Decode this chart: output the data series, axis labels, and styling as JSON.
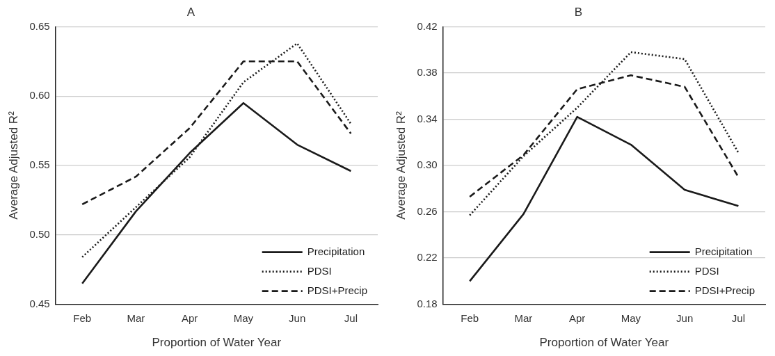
{
  "chart_data": [
    {
      "type": "line",
      "title": "A",
      "xlabel": "Proportion of Water Year",
      "ylabel": "Average Adjusted R²",
      "categories": [
        "Feb",
        "Mar",
        "Apr",
        "May",
        "Jun",
        "Jul"
      ],
      "ylim": [
        0.45,
        0.65
      ],
      "yticks": [
        {
          "value": 0.45,
          "label": "0.45"
        },
        {
          "value": 0.5,
          "label": "0.50"
        },
        {
          "value": 0.55,
          "label": "0.55"
        },
        {
          "value": 0.6,
          "label": "0.60"
        },
        {
          "value": 0.65,
          "label": "0.65"
        }
      ],
      "grid": "y",
      "legend": "bottom right",
      "marker": "none",
      "series": [
        {
          "name": "Precipitation",
          "color": "#1a1a1a",
          "line_style": "solid",
          "values": [
            0.465,
            0.517,
            0.559,
            0.595,
            0.565,
            0.546
          ]
        },
        {
          "name": "PDSI",
          "color": "#1a1a1a",
          "line_style": "dotted",
          "values": [
            0.484,
            0.52,
            0.556,
            0.61,
            0.638,
            0.58
          ]
        },
        {
          "name": "PDSI+Precip",
          "color": "#1a1a1a",
          "line_style": "dashed",
          "values": [
            0.522,
            0.542,
            0.577,
            0.625,
            0.625,
            0.573
          ]
        }
      ]
    },
    {
      "type": "line",
      "title": "B",
      "xlabel": "Proportion of Water Year",
      "ylabel": "Average Adjusted R²",
      "categories": [
        "Feb",
        "Mar",
        "Apr",
        "May",
        "Jun",
        "Jul"
      ],
      "ylim": [
        0.18,
        0.42
      ],
      "yticks": [
        {
          "value": 0.18,
          "label": "0.18"
        },
        {
          "value": 0.22,
          "label": "0.22"
        },
        {
          "value": 0.26,
          "label": "0.26"
        },
        {
          "value": 0.3,
          "label": "0.30"
        },
        {
          "value": 0.34,
          "label": "0.34"
        },
        {
          "value": 0.38,
          "label": "0.38"
        },
        {
          "value": 0.42,
          "label": "0.42"
        }
      ],
      "grid": "y",
      "legend": "bottom right",
      "marker": "none",
      "series": [
        {
          "name": "Precipitation",
          "color": "#1a1a1a",
          "line_style": "solid",
          "values": [
            0.2,
            0.258,
            0.342,
            0.318,
            0.279,
            0.265
          ]
        },
        {
          "name": "PDSI",
          "color": "#1a1a1a",
          "line_style": "dotted",
          "values": [
            0.257,
            0.308,
            0.35,
            0.398,
            0.392,
            0.311
          ]
        },
        {
          "name": "PDSI+Precip",
          "color": "#1a1a1a",
          "line_style": "dashed",
          "values": [
            0.273,
            0.309,
            0.366,
            0.378,
            0.368,
            0.29
          ]
        }
      ]
    }
  ]
}
